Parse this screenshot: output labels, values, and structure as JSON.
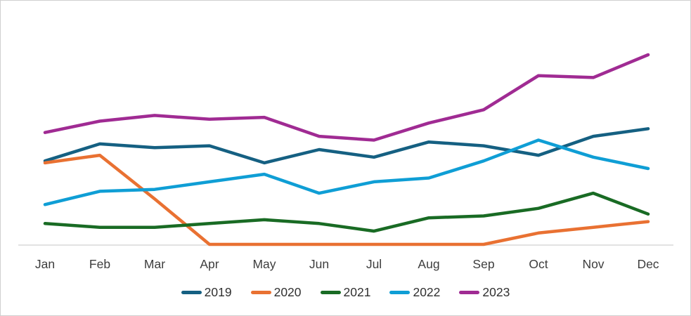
{
  "window": {
    "background": "#FFFFFF",
    "border_color": "#CFCFCF"
  },
  "chart_data": {
    "type": "line",
    "title": "",
    "xlabel": "",
    "ylabel": "",
    "categories": [
      "Jan",
      "Feb",
      "Mar",
      "Apr",
      "May",
      "Jun",
      "Jul",
      "Aug",
      "Sep",
      "Oct",
      "Nov",
      "Dec"
    ],
    "series": [
      {
        "name": "2019",
        "color": "#156082",
        "values": [
          44,
          53,
          51,
          52,
          43,
          50,
          46,
          54,
          52,
          47,
          57,
          61
        ]
      },
      {
        "name": "2020",
        "color": "#E97132",
        "values": [
          43,
          47,
          24,
          0,
          0,
          0,
          0,
          0,
          0,
          6,
          9,
          12
        ]
      },
      {
        "name": "2021",
        "color": "#196B24",
        "values": [
          11,
          9,
          9,
          11,
          13,
          11,
          7,
          14,
          15,
          19,
          27,
          16
        ]
      },
      {
        "name": "2022",
        "color": "#0F9ED5",
        "values": [
          21,
          28,
          29,
          33,
          37,
          27,
          33,
          35,
          44,
          55,
          46,
          40
        ]
      },
      {
        "name": "2023",
        "color": "#A02B93",
        "values": [
          59,
          65,
          68,
          66,
          67,
          57,
          55,
          64,
          71,
          89,
          88,
          100
        ]
      }
    ],
    "ylim": [
      0,
      105
    ],
    "y_axis_visible": false,
    "grid": false,
    "legend_position": "bottom",
    "axis_line_color": "#D9D9D9",
    "label_color": "#3D3D3D"
  }
}
